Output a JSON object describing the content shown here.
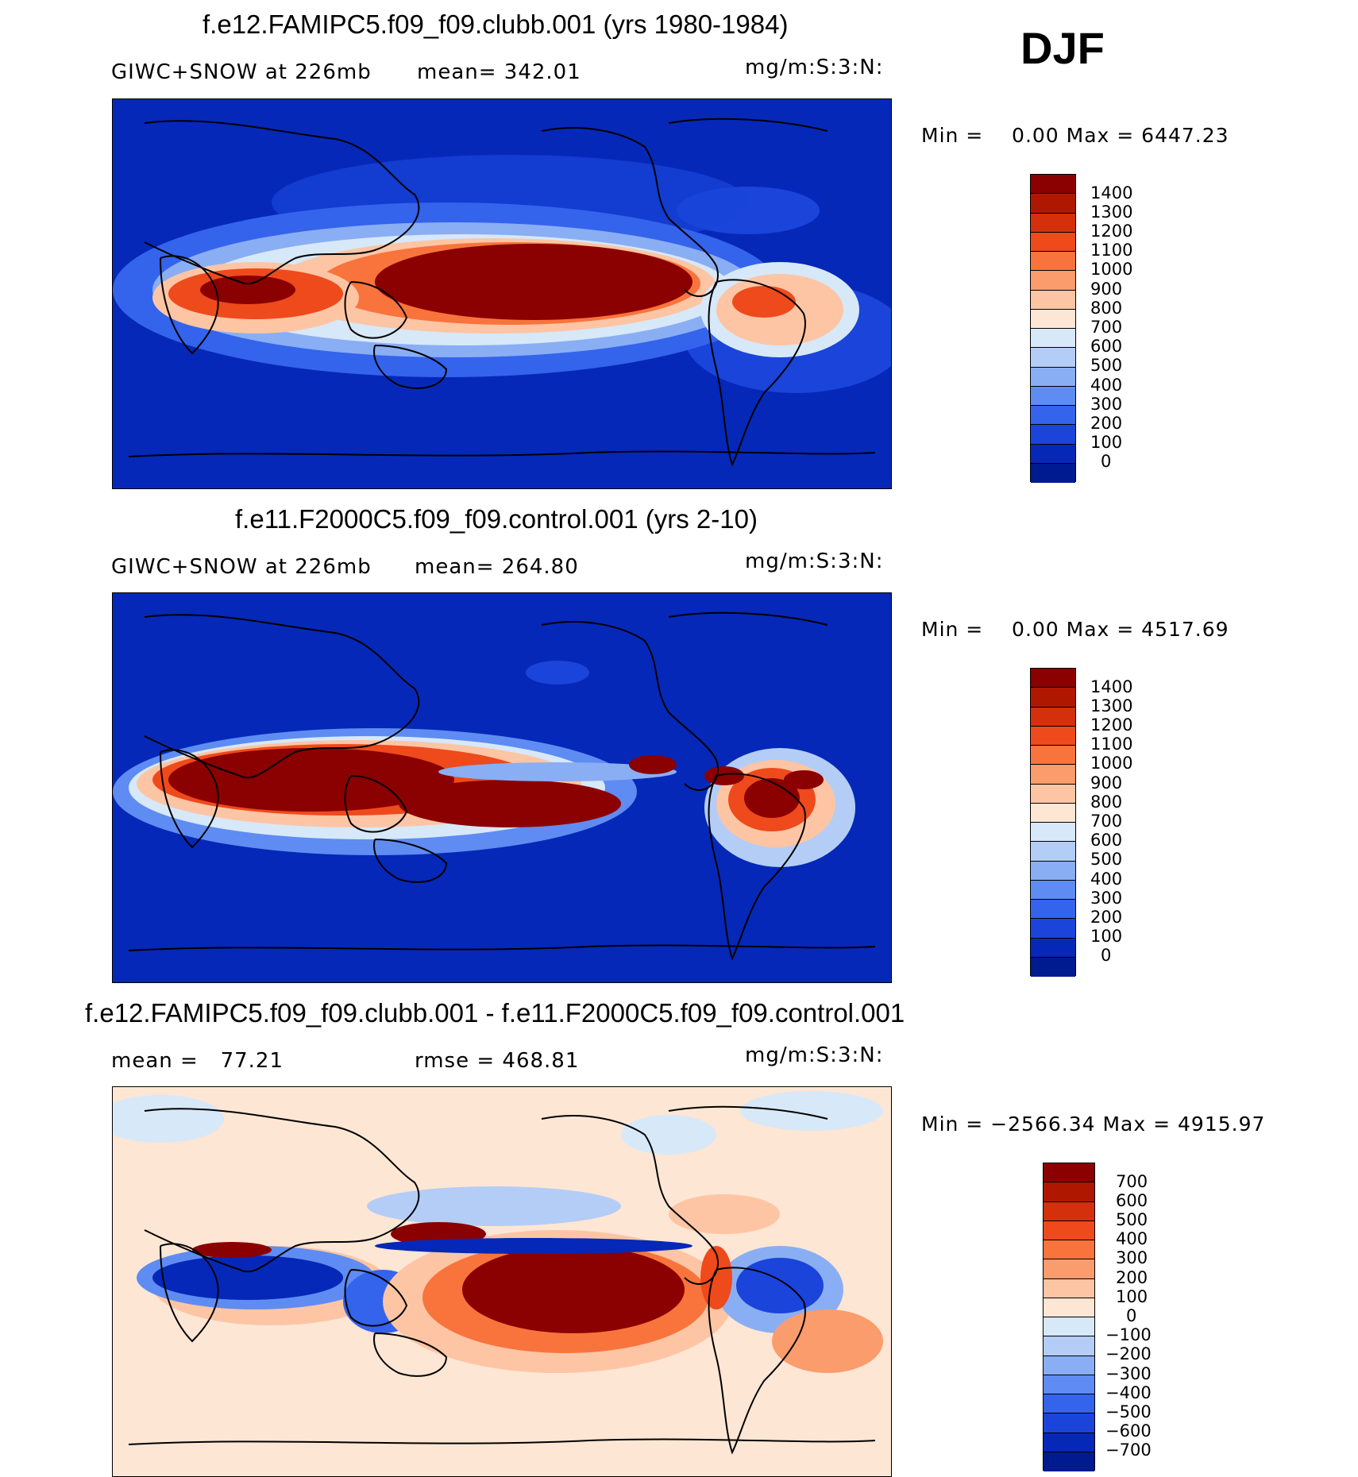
{
  "season": "DJF",
  "panels": [
    {
      "title": "f.e12.FAMIPC5.f09_f09.clubb.001 (yrs 1980-1984)",
      "left_label": "GIWC+SNOW at 226mb",
      "stat_label": "mean= 342.01",
      "units": "mg/m:S:3:N:",
      "minmax": "Min =    0.00 Max = 6447.23",
      "colorbar": {
        "levels": [
          "1400",
          "1300",
          "1200",
          "1100",
          "1000",
          "900",
          "800",
          "700",
          "600",
          "500",
          "400",
          "300",
          "200",
          "100",
          "0"
        ],
        "colors": [
          "#8b0000",
          "#b01700",
          "#d4300c",
          "#ee4a1c",
          "#f8743c",
          "#fb9c6c",
          "#fdc5a4",
          "#fde6d4",
          "#d7e8f8",
          "#b3cdf6",
          "#8aaef4",
          "#5e8cf2",
          "#3463ec",
          "#1a44da",
          "#0628b8",
          "#001a8f"
        ]
      }
    },
    {
      "title": "f.e11.F2000C5.f09_f09.control.001 (yrs 2-10)",
      "left_label": "GIWC+SNOW at 226mb",
      "stat_label": "mean= 264.80",
      "units": "mg/m:S:3:N:",
      "minmax": "Min =    0.00 Max = 4517.69",
      "colorbar": {
        "levels": [
          "1400",
          "1300",
          "1200",
          "1100",
          "1000",
          "900",
          "800",
          "700",
          "600",
          "500",
          "400",
          "300",
          "200",
          "100",
          "0"
        ],
        "colors": [
          "#8b0000",
          "#b01700",
          "#d4300c",
          "#ee4a1c",
          "#f8743c",
          "#fb9c6c",
          "#fdc5a4",
          "#fde6d4",
          "#d7e8f8",
          "#b3cdf6",
          "#8aaef4",
          "#5e8cf2",
          "#3463ec",
          "#1a44da",
          "#0628b8",
          "#001a8f"
        ]
      }
    },
    {
      "title": "f.e12.FAMIPC5.f09_f09.clubb.001 - f.e11.F2000C5.f09_f09.control.001",
      "left_label": "mean =   77.21",
      "stat_label": "rmse = 468.81",
      "units": "mg/m:S:3:N:",
      "minmax": "Min = −2566.34 Max = 4915.97",
      "colorbar": {
        "levels": [
          "700",
          "600",
          "500",
          "400",
          "300",
          "200",
          "100",
          "0",
          "−100",
          "−200",
          "−300",
          "−400",
          "−500",
          "−600",
          "−700"
        ],
        "colors": [
          "#8b0000",
          "#b01700",
          "#d4300c",
          "#ee4a1c",
          "#f8743c",
          "#fb9c6c",
          "#fdc5a4",
          "#fde6d4",
          "#d7e8f8",
          "#b3cdf6",
          "#8aaef4",
          "#5e8cf2",
          "#3463ec",
          "#1a44da",
          "#0628b8",
          "#001a8f"
        ]
      }
    }
  ],
  "colors": {
    "deep_blue": "#0628b8",
    "dark_red": "#8b0000",
    "neutral_diff": "#fde6d4"
  }
}
